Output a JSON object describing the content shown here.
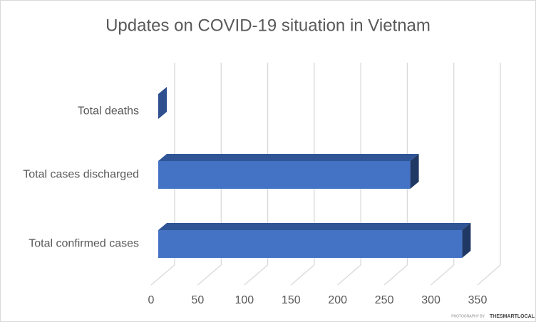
{
  "chart_data": {
    "type": "bar3d_horizontal",
    "title": "Updates on COVID-19 situation in Vietnam",
    "categories": [
      "Total deaths",
      "Total cases discharged",
      "Total confirmed cases"
    ],
    "values": [
      0,
      272,
      328
    ],
    "color": "#4472c4",
    "xlim": [
      0,
      350
    ],
    "xticks": [
      0,
      50,
      100,
      150,
      200,
      250,
      300,
      350
    ],
    "grid": true,
    "watermark": [
      "PHOTOGRAPHY BY",
      "THESMARTLOCAL"
    ]
  }
}
